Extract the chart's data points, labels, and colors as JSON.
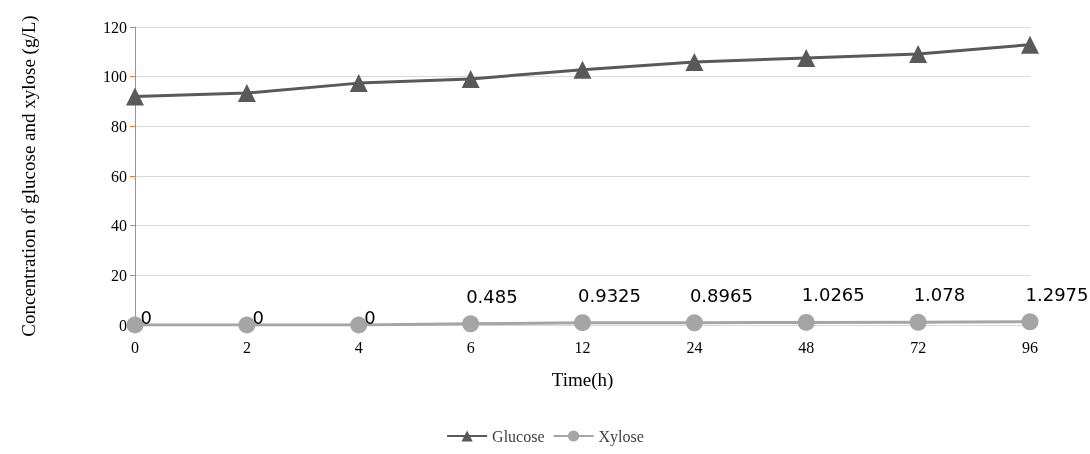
{
  "chart_data": {
    "type": "line",
    "xlabel": "Time(h)",
    "ylabel": "Concentration of glucose and xylose (g/L)",
    "categories": [
      "0",
      "2",
      "4",
      "6",
      "12",
      "24",
      "48",
      "72",
      "96"
    ],
    "series": [
      {
        "name": "Glucose",
        "color": "#595959",
        "marker": "triangle",
        "values": [
          92,
          93.4,
          97.4,
          99.1,
          102.8,
          105.9,
          107.5,
          109.1,
          112.9
        ]
      },
      {
        "name": "Xylose",
        "color": "#a5a5a5",
        "marker": "circle",
        "values": [
          0,
          0,
          0,
          0.485,
          0.9325,
          0.8965,
          1.0265,
          1.078,
          1.2975
        ],
        "value_labels": [
          "0",
          "0",
          "0",
          "0.485",
          "0.9325",
          "0.8965",
          "1.0265",
          "1.078",
          "1.2975"
        ]
      }
    ],
    "ylim": [
      0,
      120
    ],
    "yticks": [
      0,
      20,
      40,
      60,
      80,
      100,
      120
    ],
    "grid": "y",
    "legend": "bottom",
    "line_style": "solid"
  }
}
